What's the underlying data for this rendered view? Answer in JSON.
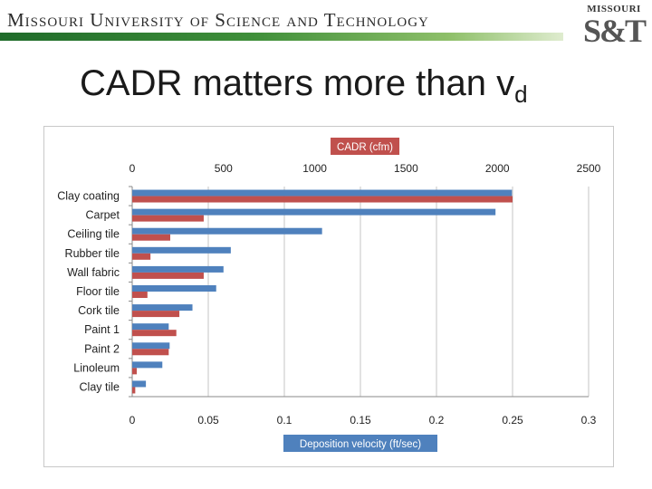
{
  "header": {
    "institution": "Missouri University of Science and Technology",
    "logo_top": "MISSOURI",
    "logo_main": "S&T"
  },
  "slide": {
    "title": "CADR matters more than v",
    "title_sub": "d"
  },
  "colors": {
    "cadr": "#4F81BD",
    "vd": "#C0504D",
    "axis_title_bg": "#C0504D",
    "axis_title_bg2": "#4F81BD"
  },
  "chart_data": {
    "type": "bar",
    "orientation": "horizontal",
    "categories": [
      "Clay coating",
      "Carpet",
      "Ceiling tile",
      "Rubber tile",
      "Wall fabric",
      "Floor tile",
      "Cork tile",
      "Paint 1",
      "Paint 2",
      "Linoleum",
      "Clay tile"
    ],
    "series": [
      {
        "name": "CADR (cfm)",
        "axis": "top",
        "values": [
          2080,
          1990,
          1040,
          540,
          500,
          460,
          330,
          200,
          205,
          165,
          75
        ]
      },
      {
        "name": "Deposition velocity (ft/sec)",
        "axis": "bottom",
        "values": [
          0.25,
          0.047,
          0.025,
          0.012,
          0.047,
          0.01,
          0.031,
          0.029,
          0.024,
          0.003,
          0.002
        ]
      }
    ],
    "top_axis": {
      "title": "CADR (cfm)",
      "range": [
        0,
        2500
      ],
      "ticks": [
        0,
        500,
        1000,
        1500,
        2000,
        2500
      ],
      "tick_labels": [
        "0",
        "500",
        "1000",
        "1500",
        "2000",
        "2500"
      ]
    },
    "bottom_axis": {
      "title": "Deposition velocity (ft/sec)",
      "range": [
        0,
        0.3
      ],
      "ticks": [
        0,
        0.05,
        0.1,
        0.15,
        0.2,
        0.25,
        0.3
      ],
      "tick_labels": [
        "0",
        "0.05",
        "0.1",
        "0.15",
        "0.2",
        "0.25",
        "0.3"
      ]
    },
    "grid": true,
    "legend": "none"
  }
}
